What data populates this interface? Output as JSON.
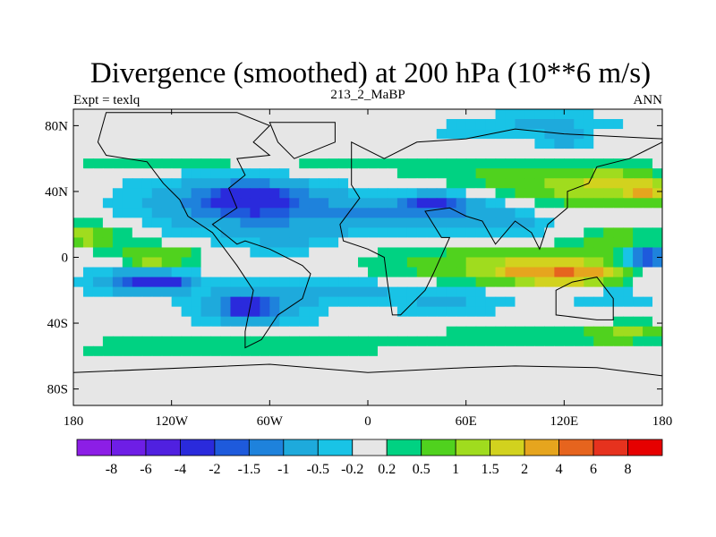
{
  "chart_data": {
    "type": "heatmap",
    "title": "Divergence (smoothed) at 200 hPa (10**6 m/s)",
    "subtitle": "213_2_MaBP",
    "left_string": "Expt = texlq",
    "right_string": "ANN",
    "x_range": [
      -180,
      180
    ],
    "y_range": [
      -90,
      90
    ],
    "x_ticks": [
      {
        "value": -180,
        "label": "180"
      },
      {
        "value": -120,
        "label": "120W"
      },
      {
        "value": -60,
        "label": "60W"
      },
      {
        "value": 0,
        "label": "0"
      },
      {
        "value": 60,
        "label": "60E"
      },
      {
        "value": 120,
        "label": "120E"
      },
      {
        "value": 180,
        "label": "180"
      }
    ],
    "y_ticks": [
      {
        "value": 80,
        "label": "80N"
      },
      {
        "value": 40,
        "label": "40N"
      },
      {
        "value": 0,
        "label": "0"
      },
      {
        "value": -40,
        "label": "40S"
      },
      {
        "value": -80,
        "label": "80S"
      }
    ],
    "levels": [
      -8,
      -6,
      -4,
      -2,
      -1.5,
      -1,
      -0.5,
      -0.2,
      0.2,
      0.5,
      1,
      1.5,
      2,
      4,
      6,
      8
    ],
    "level_labels": [
      "-8",
      "-6",
      "-4",
      "-2",
      "-1.5",
      "-1",
      "-0.5",
      "-0.2",
      "0.2",
      "0.5",
      "1",
      "1.5",
      "2",
      "4",
      "6",
      "8"
    ],
    "colors": [
      "#8c1ee6",
      "#6e1ee6",
      "#5020e0",
      "#2a2adc",
      "#1e5adc",
      "#1e82dc",
      "#1eaadc",
      "#19c3e6",
      "#e6e6e6",
      "#00d282",
      "#50d21e",
      "#a0dc1e",
      "#d2d21e",
      "#e6a51e",
      "#e6641e",
      "#e6321e",
      "#e60000"
    ],
    "blobs": [
      {
        "lon": -120,
        "lat": 58,
        "rx": 55,
        "ry": 5,
        "v": 0.6
      },
      {
        "lon": -20,
        "lat": 55,
        "rx": 35,
        "ry": 5,
        "v": 0.4
      },
      {
        "lon": 120,
        "lat": 40,
        "rx": 45,
        "ry": 10,
        "v": 0.7
      },
      {
        "lon": 150,
        "lat": 45,
        "rx": 30,
        "ry": 10,
        "v": 1.2
      },
      {
        "lon": 170,
        "lat": 40,
        "rx": 12,
        "ry": 6,
        "v": 1.7
      },
      {
        "lon": 75,
        "lat": 50,
        "rx": 55,
        "ry": 12,
        "v": 0.5
      },
      {
        "lon": 60,
        "lat": 75,
        "rx": 25,
        "ry": 6,
        "v": -0.3
      },
      {
        "lon": 110,
        "lat": 82,
        "rx": 45,
        "ry": 6,
        "v": -0.6
      },
      {
        "lon": 120,
        "lat": 72,
        "rx": 15,
        "ry": 4,
        "v": -1.2
      },
      {
        "lon": -80,
        "lat": 32,
        "rx": 60,
        "ry": 18,
        "v": -1.2
      },
      {
        "lon": -70,
        "lat": 35,
        "rx": 25,
        "ry": 8,
        "v": -2.2
      },
      {
        "lon": -10,
        "lat": 25,
        "rx": 45,
        "ry": 12,
        "v": -0.7
      },
      {
        "lon": 50,
        "lat": 28,
        "rx": 40,
        "ry": 12,
        "v": -1.0
      },
      {
        "lon": 40,
        "lat": 34,
        "rx": 15,
        "ry": 4,
        "v": -1.6
      },
      {
        "lon": 95,
        "lat": 20,
        "rx": 25,
        "ry": 8,
        "v": -0.4
      },
      {
        "lon": -170,
        "lat": 15,
        "rx": 25,
        "ry": 8,
        "v": 0.7
      },
      {
        "lon": -172,
        "lat": 12,
        "rx": 8,
        "ry": 3,
        "v": 1.7
      },
      {
        "lon": -140,
        "lat": 5,
        "rx": 25,
        "ry": 7,
        "v": 0.5
      },
      {
        "lon": -120,
        "lat": 0,
        "rx": 20,
        "ry": 5,
        "v": 0.8
      },
      {
        "lon": -135,
        "lat": -5,
        "rx": 10,
        "ry": 3,
        "v": 1.7
      },
      {
        "lon": -50,
        "lat": 8,
        "rx": 25,
        "ry": 8,
        "v": -0.4
      },
      {
        "lon": 70,
        "lat": -5,
        "rx": 70,
        "ry": 13,
        "v": 0.8
      },
      {
        "lon": 110,
        "lat": -8,
        "rx": 40,
        "ry": 8,
        "v": 1.6
      },
      {
        "lon": 125,
        "lat": -10,
        "rx": 25,
        "ry": 5,
        "v": 2.5
      },
      {
        "lon": 155,
        "lat": 10,
        "rx": 25,
        "ry": 8,
        "v": 0.8
      },
      {
        "lon": 170,
        "lat": 0,
        "rx": 12,
        "ry": 6,
        "v": -2.5
      },
      {
        "lon": -140,
        "lat": -15,
        "rx": 35,
        "ry": 8,
        "v": -1.0
      },
      {
        "lon": -130,
        "lat": -15,
        "rx": 15,
        "ry": 4,
        "v": -3.0
      },
      {
        "lon": -70,
        "lat": -30,
        "rx": 35,
        "ry": 13,
        "v": -1.0
      },
      {
        "lon": -75,
        "lat": -30,
        "rx": 12,
        "ry": 5,
        "v": -2.5
      },
      {
        "lon": -15,
        "lat": -20,
        "rx": 35,
        "ry": 8,
        "v": -0.6
      },
      {
        "lon": 50,
        "lat": -25,
        "rx": 45,
        "ry": 10,
        "v": -0.6
      },
      {
        "lon": 150,
        "lat": -25,
        "rx": 30,
        "ry": 8,
        "v": -0.4
      },
      {
        "lon": -90,
        "lat": -55,
        "rx": 90,
        "ry": 7,
        "v": 0.5
      },
      {
        "lon": 100,
        "lat": -50,
        "rx": 80,
        "ry": 7,
        "v": 0.5
      },
      {
        "lon": 160,
        "lat": -45,
        "rx": 25,
        "ry": 5,
        "v": 1.0
      }
    ],
    "coastline_outlines": [
      [
        [
          -160,
          88
        ],
        [
          -80,
          88
        ],
        [
          -60,
          80
        ],
        [
          -70,
          70
        ],
        [
          -60,
          62
        ],
        [
          -80,
          60
        ],
        [
          -75,
          50
        ],
        [
          -85,
          42
        ],
        [
          -80,
          30
        ],
        [
          -95,
          20
        ],
        [
          -85,
          12
        ],
        [
          -80,
          8
        ],
        [
          -75,
          10
        ],
        [
          -60,
          5
        ],
        [
          -40,
          -5
        ],
        [
          -35,
          -10
        ],
        [
          -40,
          -25
        ],
        [
          -55,
          -35
        ],
        [
          -65,
          -50
        ],
        [
          -75,
          -55
        ],
        [
          -75,
          -45
        ],
        [
          -70,
          -20
        ],
        [
          -80,
          -5
        ],
        [
          -95,
          15
        ],
        [
          -110,
          25
        ],
        [
          -115,
          35
        ],
        [
          -125,
          45
        ],
        [
          -135,
          58
        ],
        [
          -160,
          62
        ],
        [
          -165,
          70
        ]
      ],
      [
        [
          -60,
          82
        ],
        [
          -20,
          82
        ],
        [
          -20,
          70
        ],
        [
          -45,
          60
        ],
        [
          -55,
          70
        ]
      ],
      [
        [
          -10,
          70
        ],
        [
          -10,
          44
        ],
        [
          -5,
          36
        ],
        [
          -17,
          20
        ],
        [
          -15,
          10
        ],
        [
          0,
          5
        ],
        [
          10,
          0
        ],
        [
          12,
          -15
        ],
        [
          15,
          -35
        ],
        [
          20,
          -35
        ],
        [
          35,
          -20
        ],
        [
          40,
          -10
        ],
        [
          50,
          12
        ],
        [
          45,
          12
        ],
        [
          35,
          28
        ],
        [
          50,
          30
        ],
        [
          60,
          25
        ],
        [
          70,
          22
        ],
        [
          78,
          8
        ],
        [
          90,
          22
        ],
        [
          100,
          15
        ],
        [
          105,
          5
        ],
        [
          110,
          20
        ],
        [
          122,
          30
        ],
        [
          122,
          40
        ],
        [
          135,
          45
        ],
        [
          140,
          55
        ],
        [
          160,
          60
        ],
        [
          170,
          65
        ],
        [
          180,
          70
        ],
        [
          180,
          72
        ],
        [
          120,
          75
        ],
        [
          90,
          78
        ],
        [
          60,
          72
        ],
        [
          30,
          70
        ],
        [
          10,
          60
        ]
      ],
      [
        [
          115,
          -20
        ],
        [
          125,
          -15
        ],
        [
          140,
          -12
        ],
        [
          150,
          -25
        ],
        [
          150,
          -38
        ],
        [
          140,
          -38
        ],
        [
          115,
          -35
        ]
      ],
      [
        [
          -180,
          -70
        ],
        [
          -60,
          -65
        ],
        [
          0,
          -70
        ],
        [
          60,
          -67
        ],
        [
          90,
          -66
        ],
        [
          140,
          -67
        ],
        [
          180,
          -72
        ],
        [
          180,
          -90
        ],
        [
          -180,
          -90
        ]
      ]
    ]
  }
}
